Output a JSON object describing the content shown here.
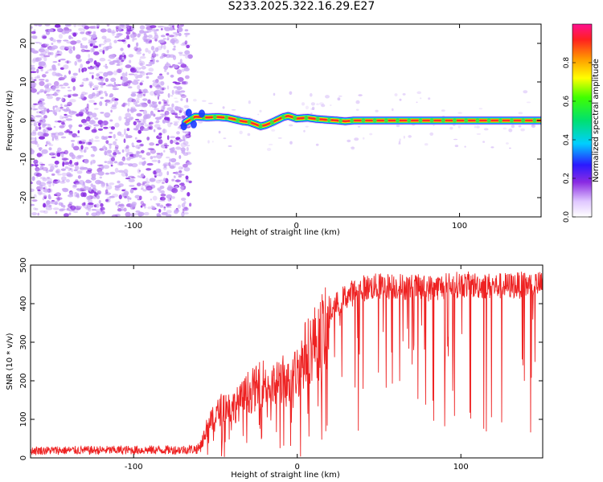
{
  "page_title": "S233.2025.322.16.29.E27",
  "colors": {
    "snr_line": "#ee2222",
    "purple_strong": "#8a2be2",
    "purple_light": "#c9a6f5"
  },
  "chart_data": [
    {
      "type": "heatmap",
      "title": "S233.2025.322.16.29.E27",
      "xlabel": "Height of straight line (km)",
      "ylabel": "Frequency (Hz)",
      "xlim": [
        -163,
        150
      ],
      "ylim": [
        -25,
        25
      ],
      "x_ticks": [
        -100,
        0,
        100
      ],
      "y_ticks": [
        20,
        10,
        0,
        -10,
        -20
      ],
      "noise_region": {
        "x_from": -163,
        "x_to": -68
      },
      "ridge": {
        "x": [
          -68,
          -62,
          -55,
          -48,
          -42,
          -38,
          -33,
          -29,
          -25,
          -22,
          -19,
          -15,
          -11,
          -8,
          -5,
          -2,
          0,
          3,
          7,
          12,
          18,
          25,
          30,
          35,
          40,
          60,
          80,
          100,
          120,
          140,
          150
        ],
        "y": [
          -0.5,
          1.0,
          0.8,
          0.9,
          0.7,
          0.3,
          -0.2,
          -0.4,
          -1.0,
          -1.5,
          -1.2,
          -0.5,
          0.3,
          0.9,
          1.2,
          0.8,
          0.5,
          0.6,
          0.7,
          0.4,
          0.2,
          0.0,
          -0.2,
          0.0,
          0.0,
          0.0,
          0.0,
          0.0,
          0.0,
          0.0,
          0.0
        ]
      }
    },
    {
      "type": "colorbar",
      "label": "Normalized spectral amplitude",
      "range": [
        0,
        1
      ],
      "ticks": [
        "0.0",
        "0.2",
        "0.4",
        "0.6",
        "0.8"
      ],
      "tick_values": [
        0.0,
        0.2,
        0.4,
        0.6,
        0.8
      ]
    },
    {
      "type": "line",
      "xlabel": "Height of straight line (km)",
      "ylabel": "SNR (10 * v/v)",
      "xlim": [
        -163,
        150
      ],
      "ylim": [
        0,
        500
      ],
      "x_ticks": [
        -100,
        0,
        100
      ],
      "y_ticks": [
        0,
        100,
        200,
        300,
        400,
        500
      ],
      "envelope": {
        "x": [
          -163,
          -70,
          -60,
          -55,
          -50,
          -45,
          -40,
          -35,
          -30,
          -25,
          -20,
          -15,
          -10,
          -5,
          0,
          5,
          10,
          15,
          20,
          25,
          30,
          35,
          40,
          50,
          60,
          80,
          100,
          120,
          150
        ],
        "y": [
          20,
          22,
          25,
          90,
          120,
          150,
          145,
          160,
          190,
          200,
          220,
          200,
          230,
          210,
          250,
          300,
          330,
          360,
          380,
          400,
          420,
          430,
          440,
          445,
          445,
          440,
          450,
          445,
          450
        ]
      }
    }
  ]
}
